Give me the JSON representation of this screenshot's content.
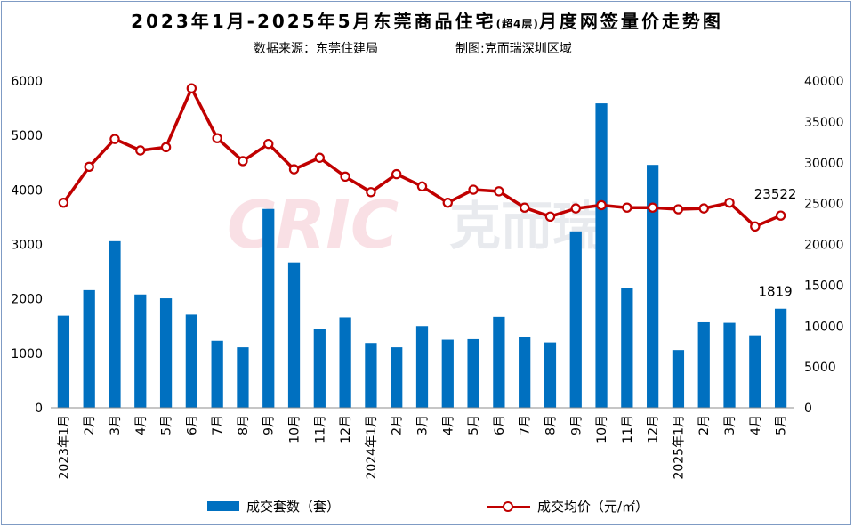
{
  "title": {
    "main_before": "2023年1月-2025年5月东莞商品住宅",
    "main_paren": "(超4层)",
    "main_after": "月度网签量价走势图",
    "source": "数据来源：东莞住建局",
    "made_by": "制图:克而瑞深圳区域"
  },
  "watermark": {
    "text_latin": "CRIC",
    "text_cn": "克而瑞"
  },
  "colors": {
    "bar": "#0070c0",
    "line": "#c00000",
    "grid": "#d9d9d9"
  },
  "legend": {
    "bar_label": "成交套数（套）",
    "line_label": "成交均价（元/㎡）"
  },
  "chart_data": {
    "type": "bar+line",
    "categories": [
      "2023年1月",
      "2月",
      "3月",
      "4月",
      "5月",
      "6月",
      "7月",
      "8月",
      "9月",
      "10月",
      "11月",
      "12月",
      "2024年1月",
      "2月",
      "3月",
      "4月",
      "5月",
      "6月",
      "7月",
      "8月",
      "9月",
      "10月",
      "11月",
      "12月",
      "2025年1月",
      "2月",
      "3月",
      "4月",
      "5月"
    ],
    "series": [
      {
        "name": "成交套数（套）",
        "type": "bar",
        "axis": "left",
        "values": [
          1690,
          2160,
          3060,
          2080,
          2010,
          1710,
          1230,
          1110,
          3650,
          2670,
          1450,
          1660,
          1190,
          1110,
          1500,
          1250,
          1260,
          1670,
          1300,
          1200,
          3240,
          5590,
          2200,
          4460,
          1060,
          1570,
          1560,
          1330,
          1819
        ]
      },
      {
        "name": "成交均价（元/㎡）",
        "type": "line",
        "axis": "right",
        "values": [
          25100,
          29500,
          32900,
          31500,
          31900,
          39100,
          33000,
          30200,
          32300,
          29200,
          30600,
          28300,
          26400,
          28600,
          27100,
          25100,
          26700,
          26500,
          24500,
          23400,
          24400,
          24800,
          24500,
          24500,
          24300,
          24400,
          25100,
          22200,
          23522
        ]
      }
    ],
    "y_left": {
      "min": 0,
      "max": 6000,
      "ticks": [
        0,
        1000,
        2000,
        3000,
        4000,
        5000,
        6000
      ]
    },
    "y_right": {
      "min": 0,
      "max": 40000,
      "ticks": [
        0,
        5000,
        10000,
        15000,
        20000,
        25000,
        30000,
        35000,
        40000
      ]
    },
    "data_labels": [
      {
        "series": 0,
        "index": 28,
        "text": "1819"
      },
      {
        "series": 1,
        "index": 28,
        "text": "23522"
      }
    ],
    "grid": false,
    "legend_position": "bottom"
  }
}
